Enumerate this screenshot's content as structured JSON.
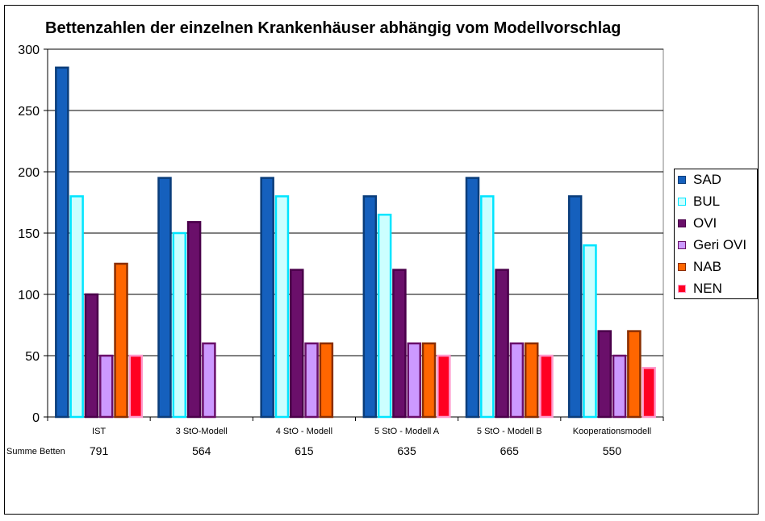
{
  "chart_data": {
    "type": "bar",
    "title": "Bettenzahlen der einzelnen Krankenhäuser abhängig vom Modellvorschlag",
    "categories": [
      "IST",
      "3 StO-Modell",
      "4 StO - Modell",
      "5 StO - Modell A",
      "5 StO - Modell B",
      "Kooperationsmodell"
    ],
    "ylim": [
      0,
      300
    ],
    "yticks": [
      0,
      50,
      100,
      150,
      200,
      250,
      300
    ],
    "grid": true,
    "legend_position": "right",
    "series": [
      {
        "name": "SAD",
        "color": "#1560bd",
        "border": "#0b3d7a",
        "values": [
          285,
          195,
          195,
          180,
          195,
          180
        ]
      },
      {
        "name": "BUL",
        "color": "#ccffff",
        "border": "#00e5ff",
        "values": [
          180,
          150,
          180,
          165,
          180,
          140
        ]
      },
      {
        "name": "OVI",
        "color": "#6a0f6a",
        "border": "#4a004a",
        "values": [
          100,
          159,
          120,
          120,
          120,
          70
        ]
      },
      {
        "name": "Geri OVI",
        "color": "#cc99ff",
        "border": "#6a0f6a",
        "values": [
          50,
          60,
          60,
          60,
          60,
          50
        ]
      },
      {
        "name": "NAB",
        "color": "#ff6600",
        "border": "#8a2e00",
        "values": [
          125,
          null,
          60,
          60,
          60,
          70
        ]
      },
      {
        "name": "NEN",
        "color": "#ff0022",
        "border": "#ff99cc",
        "values": [
          50,
          null,
          null,
          50,
          50,
          40
        ]
      }
    ],
    "sum_label": "Summe Betten",
    "sums": [
      "791",
      "564",
      "615",
      "635",
      "665",
      "550"
    ]
  }
}
